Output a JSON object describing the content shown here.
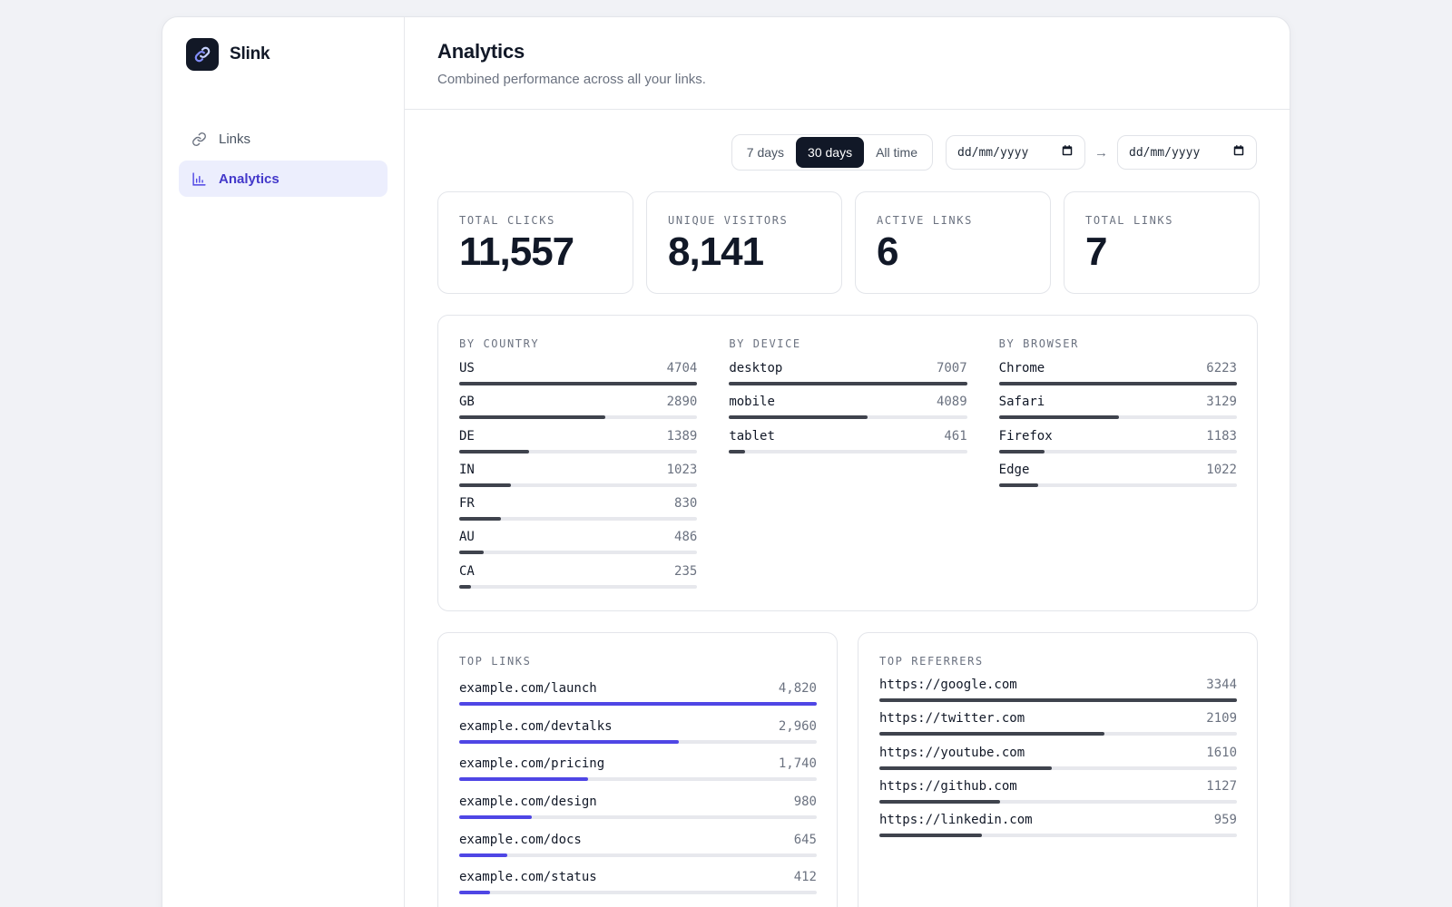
{
  "brand": {
    "name": "Slink"
  },
  "sidebar": {
    "items": [
      {
        "label": "Links",
        "icon": "link-icon",
        "active": false
      },
      {
        "label": "Analytics",
        "icon": "bar-chart-icon",
        "active": true
      }
    ]
  },
  "header": {
    "title": "Analytics",
    "subtitle": "Combined performance across all your links."
  },
  "filters": {
    "ranges": [
      {
        "label": "7 days",
        "active": false
      },
      {
        "label": "30 days",
        "active": true
      },
      {
        "label": "All time",
        "active": false
      }
    ],
    "date_from_placeholder": "dd/mm/yyyy",
    "date_to_placeholder": "dd/mm/yyyy",
    "arrow": "→"
  },
  "stats": [
    {
      "label": "TOTAL CLICKS",
      "value": "11,557"
    },
    {
      "label": "UNIQUE VISITORS",
      "value": "8,141"
    },
    {
      "label": "ACTIVE LINKS",
      "value": "6"
    },
    {
      "label": "TOTAL LINKS",
      "value": "7"
    }
  ],
  "breakdowns": [
    {
      "label": "BY COUNTRY",
      "rows": [
        {
          "name": "US",
          "value": 4704
        },
        {
          "name": "GB",
          "value": 2890
        },
        {
          "name": "DE",
          "value": 1389
        },
        {
          "name": "IN",
          "value": 1023
        },
        {
          "name": "FR",
          "value": 830
        },
        {
          "name": "AU",
          "value": 486
        },
        {
          "name": "CA",
          "value": 235
        }
      ]
    },
    {
      "label": "BY DEVICE",
      "rows": [
        {
          "name": "desktop",
          "value": 7007
        },
        {
          "name": "mobile",
          "value": 4089
        },
        {
          "name": "tablet",
          "value": 461
        }
      ]
    },
    {
      "label": "BY BROWSER",
      "rows": [
        {
          "name": "Chrome",
          "value": 6223
        },
        {
          "name": "Safari",
          "value": 3129
        },
        {
          "name": "Firefox",
          "value": 1183
        },
        {
          "name": "Edge",
          "value": 1022
        }
      ]
    }
  ],
  "top_links": {
    "label": "TOP LINKS",
    "rows": [
      {
        "name": "example.com/launch",
        "value": 4820,
        "display": "4,820"
      },
      {
        "name": "example.com/devtalks",
        "value": 2960,
        "display": "2,960"
      },
      {
        "name": "example.com/pricing",
        "value": 1740,
        "display": "1,740"
      },
      {
        "name": "example.com/design",
        "value": 980,
        "display": "980"
      },
      {
        "name": "example.com/docs",
        "value": 645,
        "display": "645"
      },
      {
        "name": "example.com/status",
        "value": 412,
        "display": "412"
      }
    ]
  },
  "referrers": {
    "label": "TOP REFERRERS",
    "rows": [
      {
        "name": "https://google.com",
        "value": 3344
      },
      {
        "name": "https://twitter.com",
        "value": 2109
      },
      {
        "name": "https://youtube.com",
        "value": 1610
      },
      {
        "name": "https://github.com",
        "value": 1127
      },
      {
        "name": "https://linkedin.com",
        "value": 959
      }
    ]
  },
  "colors": {
    "accent": "#4f46e5",
    "bar": "#3f434d",
    "track": "#e7e8ed",
    "active_nav_bg": "#eceefd",
    "active_nav_text": "#4338ca"
  }
}
